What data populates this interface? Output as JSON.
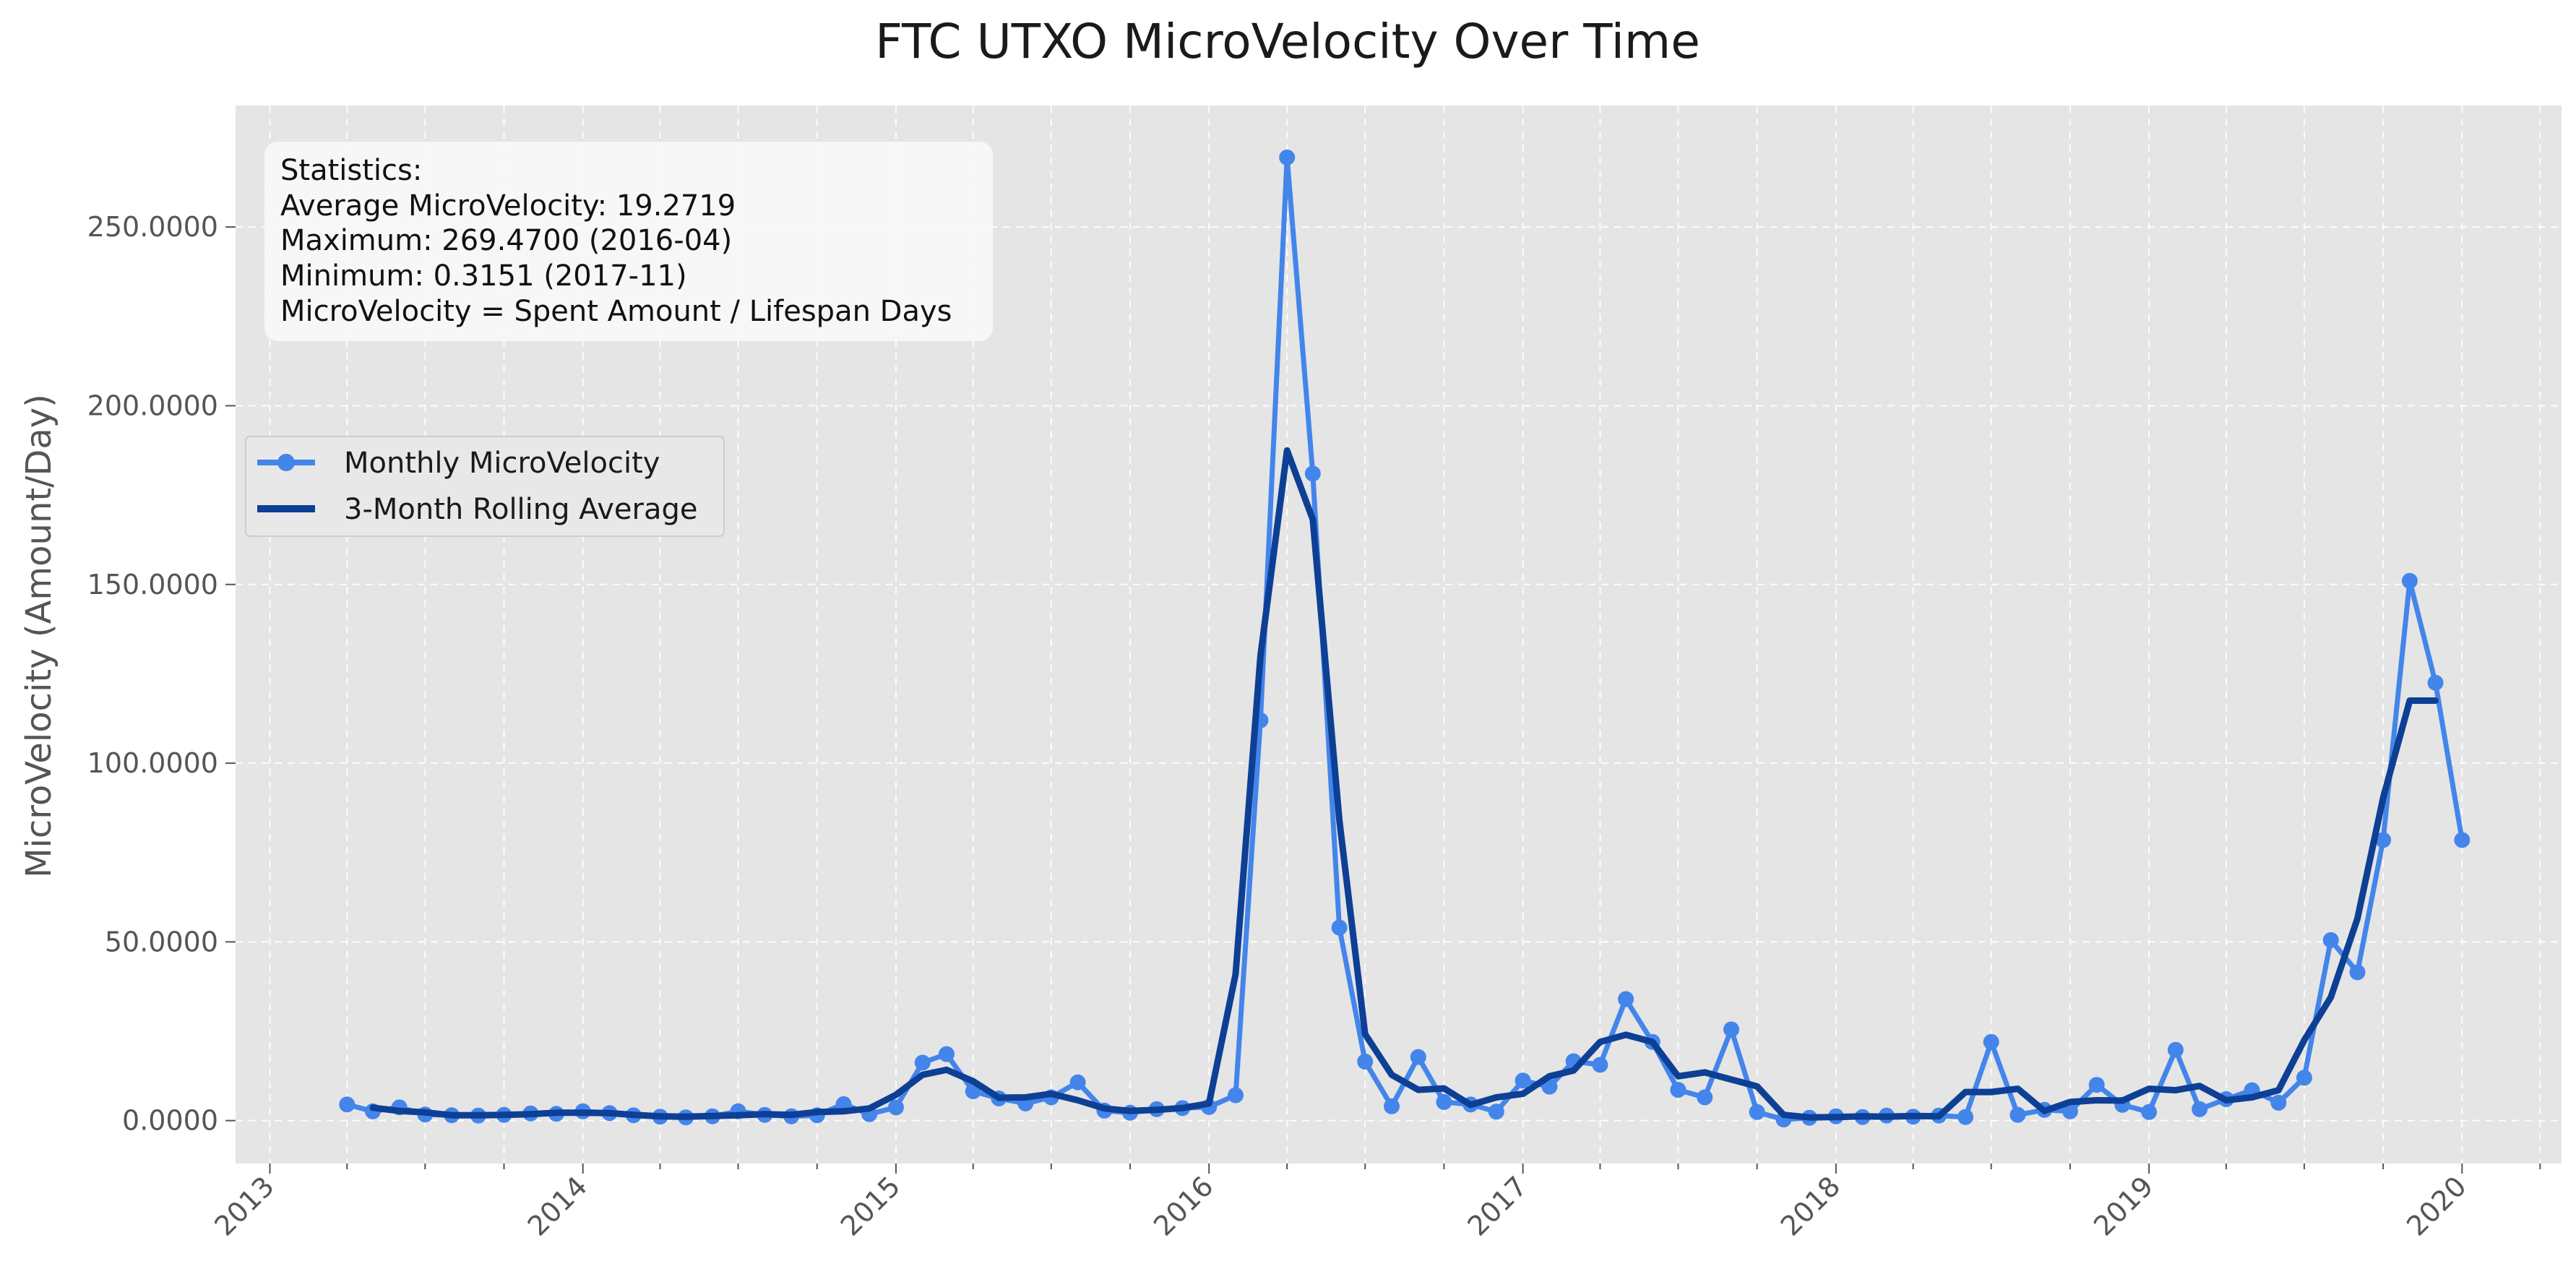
{
  "chart_data": {
    "type": "line",
    "title": "FTC UTXO MicroVelocity Over Time",
    "xlabel": "",
    "ylabel": "MicroVelocity (Amount/Day)",
    "ylim": [
      -12,
      284
    ],
    "xlim": [
      "2012-11-22",
      "2020-04-26"
    ],
    "y_ticks": [
      0,
      50,
      100,
      150,
      200,
      250
    ],
    "y_tick_labels": [
      "0.0000",
      "50.0000",
      "100.0000",
      "150.0000",
      "200.0000",
      "250.0000"
    ],
    "x_ticks": [
      "2013-01",
      "2014-01",
      "2015-01",
      "2016-01",
      "2017-01",
      "2018-01",
      "2019-01",
      "2020-01"
    ],
    "x_tick_labels": [
      "2013",
      "2014",
      "2015",
      "2016",
      "2017",
      "2018",
      "2019",
      "2020"
    ],
    "grid": true,
    "legend_position": "upper-left",
    "background": "#e5e5e5",
    "x": [
      "2013-04",
      "2013-05",
      "2013-06",
      "2013-07",
      "2013-08",
      "2013-09",
      "2013-10",
      "2013-11",
      "2013-12",
      "2014-01",
      "2014-02",
      "2014-03",
      "2014-04",
      "2014-05",
      "2014-06",
      "2014-07",
      "2014-08",
      "2014-09",
      "2014-10",
      "2014-11",
      "2014-12",
      "2015-01",
      "2015-02",
      "2015-03",
      "2015-04",
      "2015-05",
      "2015-06",
      "2015-07",
      "2015-08",
      "2015-09",
      "2015-10",
      "2015-11",
      "2015-12",
      "2016-01",
      "2016-02",
      "2016-03",
      "2016-04",
      "2016-05",
      "2016-06",
      "2016-07",
      "2016-08",
      "2016-09",
      "2016-10",
      "2016-11",
      "2016-12",
      "2017-01",
      "2017-02",
      "2017-03",
      "2017-04",
      "2017-05",
      "2017-06",
      "2017-07",
      "2017-08",
      "2017-09",
      "2017-10",
      "2017-11",
      "2017-12",
      "2018-01",
      "2018-02",
      "2018-03",
      "2018-04",
      "2018-05",
      "2018-06",
      "2018-07",
      "2018-08",
      "2018-09",
      "2018-10",
      "2018-11",
      "2018-12",
      "2019-01",
      "2019-02",
      "2019-03",
      "2019-04",
      "2019-05",
      "2019-06",
      "2019-07",
      "2019-08",
      "2019-09",
      "2019-10",
      "2019-11",
      "2019-12",
      "2020-01"
    ],
    "series": [
      {
        "name": "Monthly MicroVelocity",
        "color": "#4385ea",
        "markers": true,
        "values": [
          4.5,
          2.6,
          3.7,
          1.7,
          1.5,
          1.4,
          1.6,
          2.0,
          1.9,
          2.6,
          2.1,
          1.5,
          1.1,
          0.9,
          1.2,
          2.6,
          1.6,
          1.2,
          1.5,
          4.6,
          1.8,
          3.7,
          16.2,
          18.6,
          8.2,
          6.2,
          4.8,
          6.5,
          10.7,
          2.8,
          2.2,
          3.2,
          3.5,
          3.8,
          7.1,
          112.0,
          269.47,
          181.0,
          54.0,
          16.5,
          4.0,
          17.8,
          5.2,
          4.5,
          2.5,
          11.2,
          9.5,
          16.6,
          15.6,
          34.0,
          22.0,
          8.6,
          6.5,
          25.5,
          2.4,
          0.3151,
          0.8,
          1.2,
          1.0,
          1.4,
          1.1,
          1.4,
          1.0,
          22.0,
          1.6,
          3.0,
          2.6,
          10.0,
          4.4,
          2.4,
          19.8,
          3.2,
          6.0,
          8.5,
          5.0,
          12.0,
          50.5,
          41.5,
          78.5,
          151.0,
          122.5,
          78.5
        ]
      },
      {
        "name": "3-Month Rolling Average",
        "color": "#0d3f95",
        "markers": false,
        "values": [
          null,
          3.6,
          2.7,
          2.3,
          1.5,
          1.5,
          1.6,
          1.8,
          2.2,
          2.2,
          2.1,
          1.6,
          1.2,
          1.1,
          1.3,
          1.5,
          1.8,
          1.6,
          2.4,
          2.6,
          3.4,
          7.2,
          12.8,
          14.2,
          11.0,
          6.4,
          6.5,
          7.5,
          5.7,
          3.4,
          2.7,
          3.0,
          3.5,
          4.8,
          41.0,
          130.0,
          187.5,
          168.2,
          84.0,
          24.2,
          12.8,
          8.6,
          9.0,
          4.4,
          6.5,
          7.5,
          12.4,
          14.0,
          22.0,
          24.0,
          22.0,
          12.4,
          13.5,
          11.5,
          9.6,
          1.6,
          0.9,
          1.0,
          1.2,
          1.1,
          1.3,
          1.2,
          8.0,
          8.0,
          8.9,
          2.7,
          5.2,
          5.7,
          5.6,
          8.9,
          8.5,
          9.7,
          5.7,
          6.5,
          8.5,
          22.5,
          34.5,
          56.5,
          90.3,
          117.5,
          117.5,
          null
        ]
      }
    ],
    "stats_box": {
      "lines": [
        "Statistics:",
        "Average MicroVelocity: 19.2719",
        "Maximum: 269.4700 (2016-04)",
        "Minimum: 0.3151 (2017-11)",
        "MicroVelocity = Spent Amount / Lifespan Days"
      ]
    }
  }
}
